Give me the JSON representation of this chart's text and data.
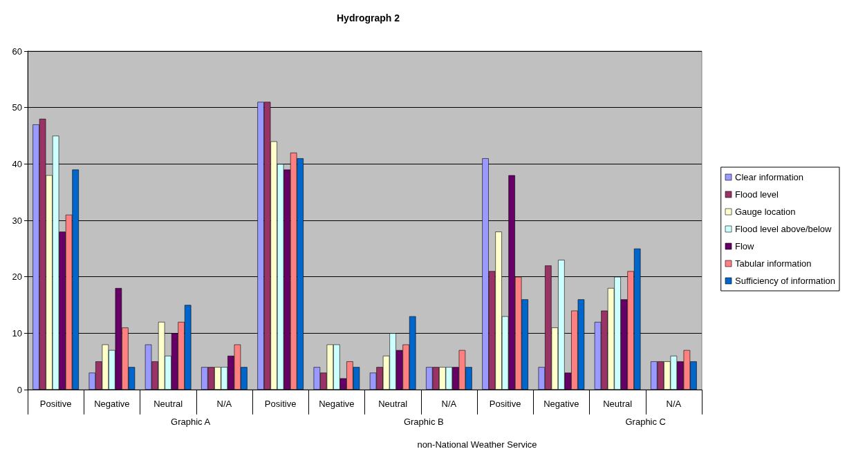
{
  "chart_data": {
    "type": "bar",
    "title": "Hydrograph 2",
    "categories": [
      "Positive",
      "Negative",
      "Neutral",
      "N/A",
      "Positive",
      "Negative",
      "Neutral",
      "N/A",
      "Positive",
      "Negative",
      "Neutral",
      "N/A"
    ],
    "series": [
      {
        "name": "Clear information",
        "color": "#9999ff",
        "values": [
          47,
          3,
          8,
          4,
          51,
          4,
          3,
          4,
          41,
          4,
          12,
          5
        ]
      },
      {
        "name": "Flood level",
        "color": "#993366",
        "values": [
          48,
          5,
          5,
          4,
          51,
          3,
          4,
          4,
          21,
          22,
          14,
          5
        ]
      },
      {
        "name": "Gauge location",
        "color": "#ffffcc",
        "values": [
          38,
          8,
          12,
          4,
          44,
          8,
          6,
          4,
          28,
          11,
          18,
          5
        ]
      },
      {
        "name": "Flood level above/below",
        "color": "#ccffff",
        "values": [
          45,
          7,
          6,
          4,
          40,
          8,
          10,
          4,
          13,
          23,
          20,
          6
        ]
      },
      {
        "name": "Flow",
        "color": "#660066",
        "values": [
          28,
          18,
          10,
          6,
          39,
          2,
          7,
          4,
          38,
          3,
          16,
          5
        ]
      },
      {
        "name": "Tabular information",
        "color": "#ff8080",
        "values": [
          31,
          11,
          12,
          8,
          42,
          5,
          8,
          7,
          20,
          14,
          21,
          7
        ]
      },
      {
        "name": "Sufficiency of information",
        "color": "#0066cc",
        "values": [
          39,
          4,
          15,
          4,
          41,
          4,
          13,
          4,
          16,
          16,
          25,
          5
        ]
      }
    ],
    "ylim": [
      0,
      60
    ],
    "yticks": [
      0,
      10,
      20,
      30,
      40,
      50,
      60
    ],
    "grid": "y",
    "legend": "right",
    "annotations": [
      "Graphic A",
      "Graphic B",
      "Graphic C",
      "non-National Weather Service"
    ]
  }
}
